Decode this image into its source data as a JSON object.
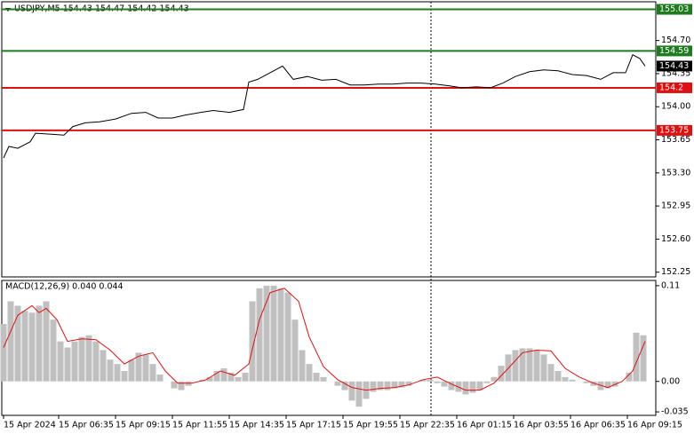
{
  "chart_data": [
    {
      "type": "line",
      "title": "USDJPY,M5  154.43 154.47 154.42 154.43",
      "xlim": [
        0,
        368
      ],
      "ylim": [
        152.2,
        155.11
      ],
      "yticks": [
        {
          "value": 154.7,
          "label": "154.70"
        },
        154.35,
        {
          "value": 154,
          "label": "154.00"
        },
        153.65,
        {
          "value": 153.3,
          "label": "153.30"
        },
        152.95,
        {
          "value": 152.6,
          "label": "152.60"
        },
        152.25
      ],
      "series": [
        {
          "color": "#000000",
          "x": [
            1,
            4,
            9,
            16,
            19,
            27,
            35,
            40,
            47,
            55,
            64,
            73,
            81,
            88,
            96,
            103,
            112,
            119,
            128,
            136,
            139,
            144,
            151,
            158,
            164,
            172,
            180,
            188,
            196,
            204,
            212,
            220,
            228,
            236,
            244,
            252,
            259,
            267,
            275,
            282,
            289,
            297,
            305,
            313,
            321,
            329,
            337,
            344,
            351,
            355,
            359,
            362
          ],
          "values": [
            153.458,
            153.58,
            153.56,
            153.63,
            153.72,
            153.71,
            153.7,
            153.79,
            153.83,
            153.84,
            153.87,
            153.93,
            153.94,
            153.88,
            153.88,
            153.91,
            153.94,
            153.96,
            153.94,
            153.97,
            154.26,
            154.29,
            154.36,
            154.43,
            154.29,
            154.32,
            154.28,
            154.29,
            154.23,
            154.23,
            154.24,
            154.24,
            154.25,
            154.25,
            154.24,
            154.22,
            154.2,
            154.21,
            154.2,
            154.25,
            154.32,
            154.37,
            154.39,
            154.38,
            154.34,
            154.33,
            154.29,
            154.36,
            154.36,
            154.55,
            154.51,
            154.43
          ]
        }
      ],
      "levels": [
        {
          "value": 155.03,
          "color": "#1e7b1e"
        },
        {
          "value": 154.59,
          "color": "#1e7b1e"
        },
        {
          "value": 154.2,
          "color": "#e01010"
        },
        {
          "value": 153.75,
          "color": "#e01010"
        }
      ],
      "last_price": 154.43
    },
    {
      "type": "macd",
      "title": "MACD(12,26,9) 0.040 0.044",
      "xlim": [
        0,
        368
      ],
      "ylim": [
        -0.039,
        0.116
      ],
      "yticks": [
        0.11,
        {
          "value": 0,
          "label": "0.00"
        },
        -0.035
      ],
      "xticks": [
        {
          "value": 1,
          "label": "15 Apr 2024"
        },
        {
          "value": 32,
          "label": "15 Apr 06:35"
        },
        {
          "value": 64,
          "label": "15 Apr 09:15"
        },
        {
          "value": 96,
          "label": "15 Apr 11:55"
        },
        {
          "value": 128,
          "label": "15 Apr 14:35"
        },
        {
          "value": 160,
          "label": "15 Apr 17:15"
        },
        {
          "value": 192,
          "label": "15 Apr 19:55"
        },
        {
          "value": 224,
          "label": "15 Apr 22:35"
        },
        {
          "value": 256,
          "label": "16 Apr 01:15"
        },
        {
          "value": 288,
          "label": "16 Apr 03:55"
        },
        {
          "value": 320,
          "label": "16 Apr 06:35"
        },
        {
          "value": 352,
          "label": "16 Apr 09:15"
        }
      ],
      "series": [
        {
          "kind": "histogram",
          "color": "#c0c0c0",
          "x": [
            1,
            5,
            9,
            13,
            17,
            21,
            25,
            29,
            33,
            37,
            41,
            45,
            49,
            53,
            57,
            61,
            65,
            69,
            73,
            77,
            81,
            85,
            89,
            93,
            97,
            101,
            105,
            109,
            113,
            117,
            121,
            125,
            129,
            133,
            137,
            141,
            145,
            149,
            153,
            157,
            161,
            165,
            169,
            173,
            177,
            181,
            185,
            189,
            193,
            197,
            201,
            205,
            209,
            213,
            217,
            221,
            225,
            229,
            233,
            237,
            241,
            245,
            249,
            253,
            257,
            261,
            265,
            269,
            273,
            277,
            281,
            285,
            289,
            293,
            297,
            301,
            305,
            309,
            313,
            317,
            321,
            325,
            329,
            333,
            337,
            341,
            345,
            349,
            353,
            357,
            361
          ],
          "values": [
            0.066,
            0.092,
            0.087,
            0.081,
            0.079,
            0.087,
            0.092,
            0.071,
            0.046,
            0.039,
            0.046,
            0.051,
            0.053,
            0.046,
            0.036,
            0.025,
            0.02,
            0.012,
            0.025,
            0.033,
            0.031,
            0.02,
            0.008,
            0,
            -0.008,
            -0.01,
            -0.005,
            0,
            0.002,
            0.005,
            0.012,
            0.015,
            0.01,
            0.005,
            0.01,
            0.092,
            0.107,
            0.11,
            0.11,
            0.107,
            0.102,
            0.071,
            0.036,
            0.02,
            0.01,
            0.005,
            0,
            -0.005,
            -0.01,
            -0.022,
            -0.029,
            -0.02,
            -0.012,
            -0.01,
            -0.01,
            -0.008,
            -0.007,
            -0.005,
            0,
            0.002,
            0.002,
            -0.002,
            -0.006,
            -0.01,
            -0.012,
            -0.015,
            -0.013,
            -0.01,
            -0.002,
            0.005,
            0.018,
            0.031,
            0.036,
            0.038,
            0.038,
            0.036,
            0.031,
            0.02,
            0.012,
            0.005,
            0.002,
            0,
            -0.002,
            -0.005,
            -0.01,
            -0.008,
            -0.006,
            0,
            0.01,
            0.056,
            0.053
          ]
        },
        {
          "kind": "line",
          "color": "#e01010",
          "x": [
            1,
            9,
            17,
            21,
            25,
            31,
            37,
            45,
            53,
            61,
            69,
            77,
            85,
            92,
            99,
            107,
            115,
            123,
            131,
            139,
            145,
            151,
            159,
            167,
            173,
            181,
            189,
            197,
            205,
            213,
            221,
            229,
            237,
            245,
            253,
            261,
            269,
            277,
            285,
            293,
            301,
            309,
            317,
            325,
            333,
            341,
            349,
            355,
            362
          ],
          "values": [
            0.039,
            0.076,
            0.087,
            0.079,
            0.084,
            0.071,
            0.046,
            0.049,
            0.048,
            0.036,
            0.02,
            0.029,
            0.033,
            0.012,
            -0.002,
            -0.002,
            0.002,
            0.012,
            0.007,
            0.02,
            0.071,
            0.102,
            0.107,
            0.092,
            0.051,
            0.017,
            0.002,
            -0.007,
            -0.01,
            -0.008,
            -0.007,
            -0.004,
            0.002,
            0.005,
            -0.003,
            -0.01,
            -0.01,
            -0.002,
            0.015,
            0.033,
            0.036,
            0.035,
            0.015,
            0.005,
            -0.002,
            -0.007,
            0,
            0.012,
            0.046
          ]
        }
      ]
    }
  ]
}
